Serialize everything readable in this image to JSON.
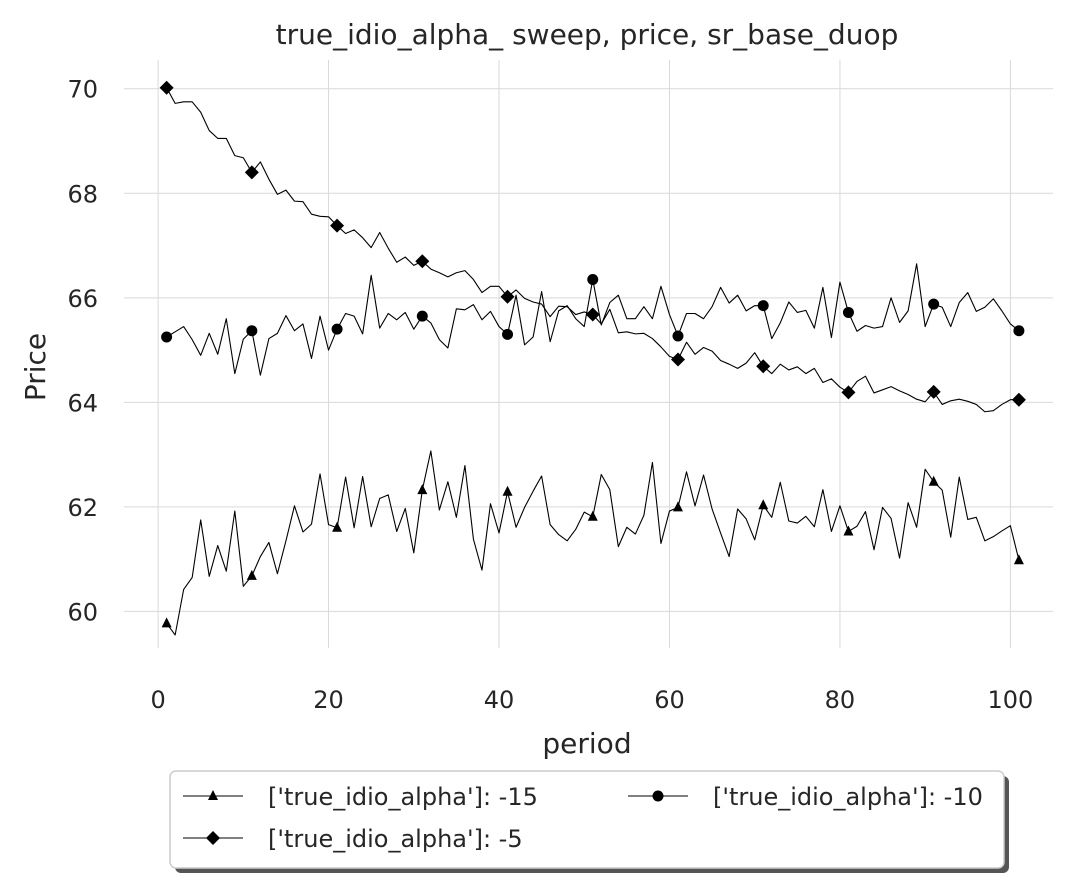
{
  "chart_data": {
    "type": "line",
    "title": "true_idio_alpha_ sweep, price, sr_base_duop",
    "xlabel": "period",
    "ylabel": "Price",
    "xlim": [
      -4,
      105
    ],
    "ylim": [
      59.3,
      70.55
    ],
    "xticks": [
      0,
      20,
      40,
      60,
      80,
      100
    ],
    "yticks": [
      60,
      62,
      64,
      66,
      68,
      70
    ],
    "grid": true,
    "legend_position": "bottom-center",
    "legend_columns": 2,
    "series": [
      {
        "name": "['true_idio_alpha']: -15",
        "marker": "triangle",
        "marker_every": 10,
        "marker_start": 1,
        "values": [
          59.77,
          59.55,
          60.42,
          60.65,
          61.75,
          60.67,
          61.26,
          60.77,
          61.92,
          60.48,
          60.68,
          61.05,
          61.32,
          60.72,
          61.35,
          62.02,
          61.52,
          61.67,
          62.63,
          61.66,
          61.6,
          62.57,
          61.6,
          62.58,
          61.62,
          62.16,
          62.23,
          61.53,
          61.97,
          61.12,
          62.32,
          63.07,
          61.94,
          62.48,
          61.8,
          62.79,
          61.38,
          60.79,
          62.06,
          61.5,
          62.29,
          61.61,
          61.99,
          62.3,
          62.59,
          61.66,
          61.47,
          61.35,
          61.57,
          61.9,
          61.81,
          62.62,
          62.33,
          61.24,
          61.61,
          61.48,
          61.84,
          62.85,
          61.3,
          61.92,
          61.99,
          62.67,
          62.02,
          62.61,
          61.96,
          61.5,
          61.05,
          61.96,
          61.77,
          61.37,
          62.03,
          61.8,
          62.47,
          61.73,
          61.69,
          61.82,
          61.62,
          62.33,
          61.53,
          62.02,
          61.53,
          61.63,
          61.91,
          61.18,
          61.99,
          61.78,
          61.02,
          62.08,
          61.61,
          62.72,
          62.48,
          62.32,
          61.42,
          62.57,
          61.76,
          61.8,
          61.35,
          61.43,
          61.54,
          61.64,
          60.98
        ]
      },
      {
        "name": "['true_idio_alpha']: -10",
        "marker": "circle",
        "marker_every": 10,
        "marker_start": 1,
        "values": [
          65.25,
          65.35,
          65.45,
          65.2,
          64.9,
          65.32,
          64.92,
          65.6,
          64.55,
          65.21,
          65.37,
          64.52,
          65.22,
          65.32,
          65.66,
          65.37,
          65.5,
          64.84,
          65.65,
          65.0,
          65.4,
          65.7,
          65.65,
          65.31,
          66.43,
          65.42,
          65.7,
          65.58,
          65.72,
          65.4,
          65.65,
          65.52,
          65.2,
          65.04,
          65.79,
          65.77,
          65.87,
          65.58,
          65.74,
          65.45,
          65.3,
          66.05,
          65.1,
          65.25,
          66.12,
          65.16,
          65.75,
          65.85,
          65.6,
          65.45,
          66.35,
          65.48,
          65.91,
          66.05,
          65.6,
          65.6,
          65.83,
          65.6,
          66.22,
          65.68,
          65.27,
          65.7,
          65.7,
          65.6,
          65.83,
          66.2,
          65.9,
          66.05,
          65.75,
          65.85,
          65.85,
          65.22,
          65.52,
          65.92,
          65.72,
          65.76,
          65.42,
          66.2,
          65.24,
          66.3,
          65.72,
          65.36,
          65.47,
          65.42,
          65.45,
          66.0,
          65.53,
          65.75,
          66.65,
          65.45,
          65.88,
          65.82,
          65.45,
          65.91,
          66.1,
          65.74,
          65.82,
          65.98,
          65.75,
          65.5,
          65.37
        ]
      },
      {
        "name": "['true_idio_alpha']: -5",
        "marker": "diamond",
        "marker_every": 10,
        "marker_start": 1,
        "values": [
          70.02,
          69.72,
          69.75,
          69.75,
          69.55,
          69.2,
          69.05,
          69.05,
          68.72,
          68.68,
          68.4,
          68.6,
          68.27,
          67.98,
          68.06,
          67.85,
          67.84,
          67.6,
          67.56,
          67.55,
          67.38,
          67.23,
          67.3,
          67.15,
          66.96,
          67.25,
          66.95,
          66.68,
          66.78,
          66.62,
          66.7,
          66.55,
          66.48,
          66.4,
          66.48,
          66.52,
          66.35,
          66.1,
          66.22,
          66.22,
          66.02,
          66.15,
          65.99,
          65.92,
          65.88,
          65.64,
          65.84,
          65.83,
          65.68,
          65.73,
          65.68,
          65.5,
          65.78,
          65.33,
          65.35,
          65.31,
          65.32,
          65.22,
          65.06,
          64.88,
          64.82,
          65.15,
          64.92,
          65.05,
          64.98,
          64.8,
          64.73,
          64.65,
          64.75,
          64.95,
          64.69,
          64.55,
          64.73,
          64.62,
          64.68,
          64.55,
          64.65,
          64.38,
          64.45,
          64.29,
          64.19,
          64.4,
          64.5,
          64.18,
          64.24,
          64.3,
          64.22,
          64.15,
          64.06,
          64.01,
          64.2,
          63.96,
          64.03,
          64.06,
          64.02,
          63.96,
          63.82,
          63.84,
          63.96,
          64.05,
          64.05
        ]
      }
    ]
  }
}
